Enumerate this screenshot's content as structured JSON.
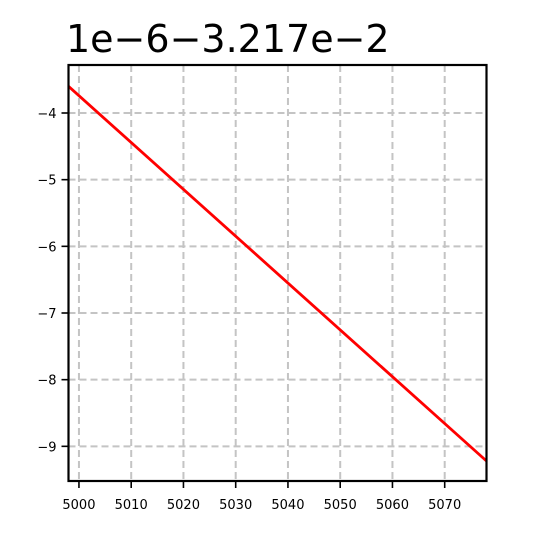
{
  "chart_data": {
    "type": "line",
    "offset_text": "1e−6−3.217e−2",
    "title": "",
    "xlabel": "",
    "ylabel": "",
    "xlim": [
      4998,
      5078
    ],
    "ylim": [
      -9.52,
      -3.28
    ],
    "grid": true,
    "x_ticks": [
      5000,
      5010,
      5020,
      5030,
      5040,
      5050,
      5060,
      5070
    ],
    "x_tick_labels": [
      "5000",
      "5010",
      "5020",
      "5030",
      "5040",
      "5050",
      "5060",
      "5070"
    ],
    "y_ticks": [
      -4,
      -5,
      -6,
      -7,
      -8,
      -9
    ],
    "y_tick_labels": [
      "−4",
      "−5",
      "−6",
      "−7",
      "−8",
      "−9"
    ],
    "series": [
      {
        "color": "#ff0000",
        "x": [
          4998,
          5078
        ],
        "y": [
          -3.6,
          -9.22
        ]
      }
    ]
  }
}
